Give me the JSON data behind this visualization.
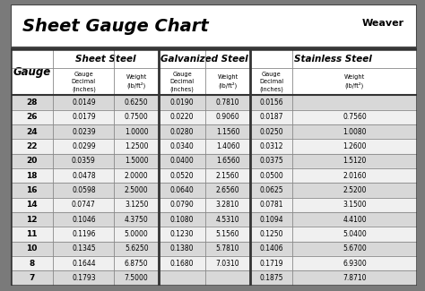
{
  "title": "Sheet Gauge Chart",
  "bg_outer": "#7a7a7a",
  "bg_title": "#ffffff",
  "bg_table": "#ffffff",
  "bg_header": "#ffffff",
  "bg_row_odd": "#d8d8d8",
  "bg_row_even": "#f0f0f0",
  "border_color": "#444444",
  "grid_color": "#888888",
  "thick_border": "#333333",
  "col_groups": [
    "Sheet Steel",
    "Galvanized Steel",
    "Stainless Steel"
  ],
  "gauges": [
    28,
    26,
    24,
    22,
    20,
    18,
    16,
    14,
    12,
    11,
    10,
    8,
    7
  ],
  "sheet_steel_decimal": [
    "0.0149",
    "0.0179",
    "0.0239",
    "0.0299",
    "0.0359",
    "0.0478",
    "0.0598",
    "0.0747",
    "0.1046",
    "0.1196",
    "0.1345",
    "0.1644",
    "0.1793"
  ],
  "sheet_steel_weight": [
    "0.6250",
    "0.7500",
    "1.0000",
    "1.2500",
    "1.5000",
    "2.0000",
    "2.5000",
    "3.1250",
    "4.3750",
    "5.0000",
    "5.6250",
    "6.8750",
    "7.5000"
  ],
  "galv_decimal": [
    "0.0190",
    "0.0220",
    "0.0280",
    "0.0340",
    "0.0400",
    "0.0520",
    "0.0640",
    "0.0790",
    "0.1080",
    "0.1230",
    "0.1380",
    "0.1680",
    ""
  ],
  "galv_weight": [
    "0.7810",
    "0.9060",
    "1.1560",
    "1.4060",
    "1.6560",
    "2.1560",
    "2.6560",
    "3.2810",
    "4.5310",
    "5.1560",
    "5.7810",
    "7.0310",
    ""
  ],
  "stainless_decimal": [
    "0.0156",
    "0.0187",
    "0.0250",
    "0.0312",
    "0.0375",
    "0.0500",
    "0.0625",
    "0.0781",
    "0.1094",
    "0.1250",
    "0.1406",
    "0.1719",
    "0.1875"
  ],
  "stainless_weight": [
    "",
    "0.7560",
    "1.0080",
    "1.2600",
    "1.5120",
    "2.0160",
    "2.5200",
    "3.1500",
    "4.4100",
    "5.0400",
    "5.6700",
    "6.9300",
    "7.8710"
  ]
}
